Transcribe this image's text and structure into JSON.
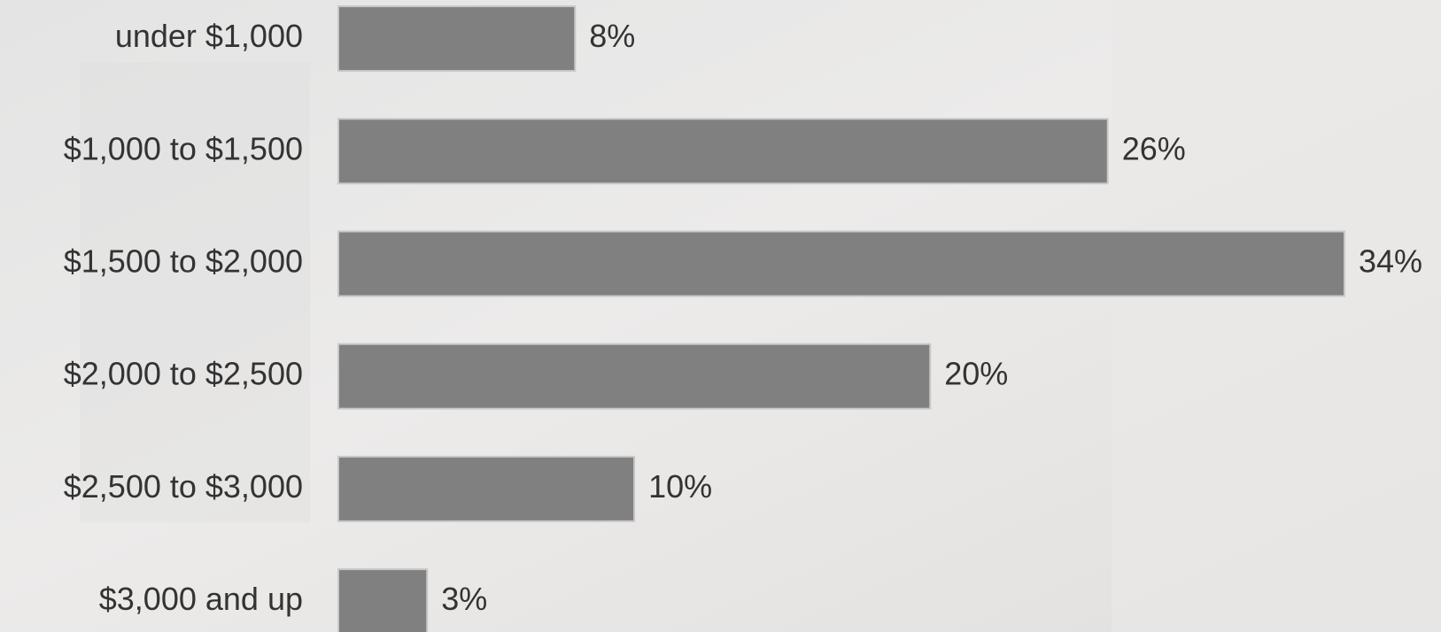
{
  "chart_data": {
    "type": "bar",
    "orientation": "horizontal",
    "categories": [
      "under $1,000",
      "$1,000 to $1,500",
      "$1,500 to $2,000",
      "$2,000 to $2,500",
      "$2,500 to $3,000",
      "$3,000 and up"
    ],
    "values": [
      8,
      26,
      34,
      20,
      10,
      3
    ],
    "value_labels": [
      "8%",
      "26%",
      "34%",
      "20%",
      "10%",
      "3%"
    ],
    "color": "#808080"
  }
}
